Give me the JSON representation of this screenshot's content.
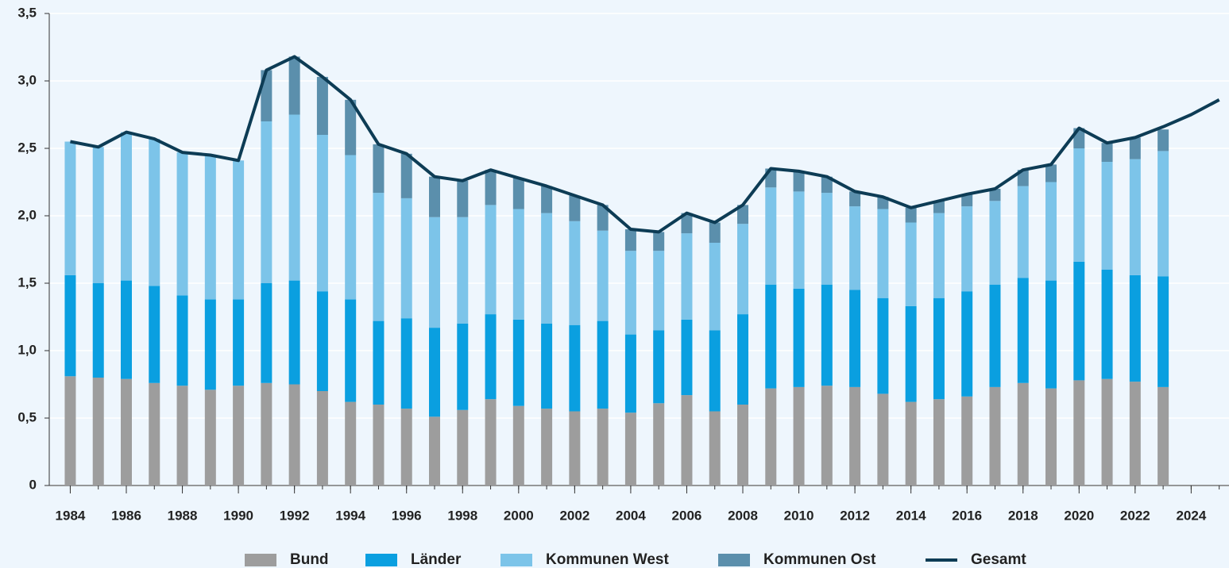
{
  "chart_data": {
    "type": "bar",
    "stacked": true,
    "x": [
      1984,
      1985,
      1986,
      1987,
      1988,
      1989,
      1990,
      1991,
      1992,
      1993,
      1994,
      1995,
      1996,
      1997,
      1998,
      1999,
      2000,
      2001,
      2002,
      2003,
      2004,
      2005,
      2006,
      2007,
      2008,
      2009,
      2010,
      2011,
      2012,
      2013,
      2014,
      2015,
      2016,
      2017,
      2018,
      2019,
      2020,
      2021,
      2022,
      2023,
      2024,
      2025
    ],
    "xlim": [
      1983.25,
      2025.35
    ],
    "xticks": [
      1984,
      1986,
      1988,
      1990,
      1992,
      1994,
      1996,
      1998,
      2000,
      2002,
      2004,
      2006,
      2008,
      2010,
      2012,
      2014,
      2016,
      2018,
      2020,
      2022,
      2024
    ],
    "ylim": [
      0,
      3.5
    ],
    "yticks": [
      0,
      {
        "value": 0.5,
        "label": "0,5"
      },
      {
        "value": 1,
        "label": "1,0"
      },
      {
        "value": 1.5,
        "label": "1,5"
      },
      {
        "value": 2,
        "label": "2,0"
      },
      {
        "value": 2.5,
        "label": "2,5"
      },
      {
        "value": 3,
        "label": "3,0"
      },
      {
        "value": 3.5,
        "label": "3,5"
      }
    ],
    "grid": true,
    "series": [
      {
        "name": "Bund",
        "type": "bar",
        "color": "#9d9d9d",
        "values": [
          0.81,
          0.8,
          0.79,
          0.76,
          0.74,
          0.71,
          0.74,
          0.76,
          0.75,
          0.7,
          0.62,
          0.6,
          0.57,
          0.51,
          0.56,
          0.64,
          0.59,
          0.57,
          0.55,
          0.57,
          0.54,
          0.61,
          0.67,
          0.55,
          0.6,
          0.72,
          0.73,
          0.74,
          0.73,
          0.68,
          0.62,
          0.64,
          0.66,
          0.73,
          0.76,
          0.72,
          0.78,
          0.79,
          0.77,
          0.73,
          null,
          null
        ]
      },
      {
        "name": "Länder",
        "type": "bar",
        "color": "#0a9fe0",
        "values": [
          0.75,
          0.7,
          0.73,
          0.72,
          0.67,
          0.67,
          0.64,
          0.74,
          0.77,
          0.74,
          0.76,
          0.62,
          0.67,
          0.66,
          0.64,
          0.63,
          0.64,
          0.63,
          0.64,
          0.65,
          0.58,
          0.54,
          0.56,
          0.6,
          0.67,
          0.77,
          0.73,
          0.75,
          0.72,
          0.71,
          0.71,
          0.75,
          0.78,
          0.76,
          0.78,
          0.8,
          0.88,
          0.81,
          0.79,
          0.82,
          null,
          null
        ]
      },
      {
        "name": "Kommunen West",
        "type": "bar",
        "color": "#7cc4e9",
        "values": [
          0.99,
          1.01,
          1.1,
          1.09,
          1.06,
          1.07,
          1.03,
          1.2,
          1.23,
          1.16,
          1.07,
          0.95,
          0.89,
          0.82,
          0.79,
          0.81,
          0.82,
          0.82,
          0.77,
          0.67,
          0.62,
          0.59,
          0.64,
          0.65,
          0.67,
          0.72,
          0.72,
          0.68,
          0.62,
          0.66,
          0.62,
          0.63,
          0.63,
          0.62,
          0.68,
          0.73,
          0.84,
          0.8,
          0.86,
          0.93,
          null,
          null
        ]
      },
      {
        "name": "Kommunen Ost",
        "type": "bar",
        "color": "#5b8fac",
        "values": [
          null,
          null,
          null,
          null,
          null,
          null,
          null,
          0.38,
          0.43,
          0.43,
          0.41,
          0.36,
          0.33,
          0.3,
          0.27,
          0.26,
          0.23,
          0.2,
          0.19,
          0.19,
          0.16,
          0.14,
          0.15,
          0.15,
          0.14,
          0.14,
          0.15,
          0.12,
          0.11,
          0.09,
          0.11,
          0.09,
          0.09,
          0.09,
          0.12,
          0.13,
          0.15,
          0.14,
          0.16,
          0.16,
          null,
          null
        ]
      },
      {
        "name": "Gesamt",
        "type": "line",
        "color": "#0d3c55",
        "values": [
          2.55,
          2.51,
          2.62,
          2.57,
          2.47,
          2.45,
          2.41,
          3.08,
          3.18,
          3.03,
          2.86,
          2.53,
          2.46,
          2.29,
          2.26,
          2.34,
          2.28,
          2.22,
          2.15,
          2.08,
          1.9,
          1.88,
          2.02,
          1.95,
          2.08,
          2.35,
          2.33,
          2.29,
          2.18,
          2.14,
          2.06,
          2.11,
          2.16,
          2.2,
          2.34,
          2.38,
          2.65,
          2.54,
          2.58,
          2.66,
          2.75,
          2.86
        ]
      }
    ]
  }
}
